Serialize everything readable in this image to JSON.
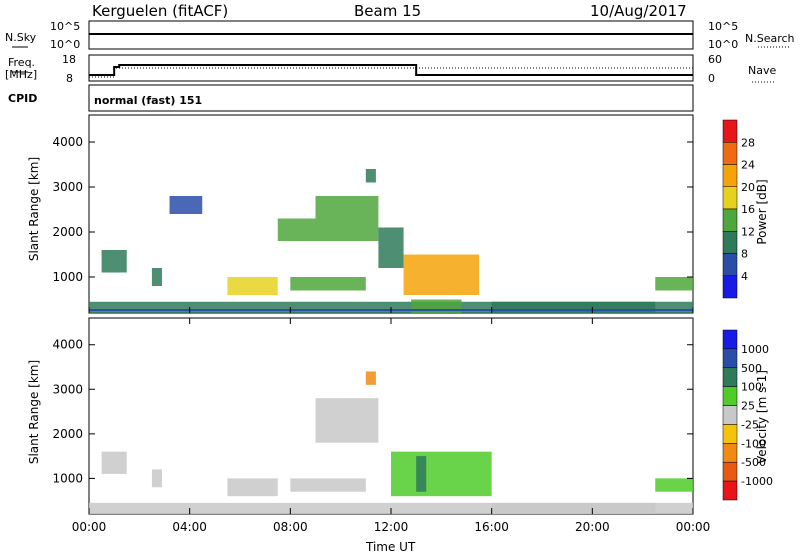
{
  "header": {
    "title": "Kerguelen (fitACF)",
    "beam": "Beam 15",
    "date": "10/Aug/2017"
  },
  "strip_panels": {
    "nsky": {
      "label": "N.Sky",
      "ticks": [
        "10^5",
        "10^0"
      ]
    },
    "nsearch": {
      "label": "N.Search",
      "ticks": [
        "10^5",
        "10^0"
      ]
    },
    "freq": {
      "label": "Freq.",
      "unit": "[MHz]",
      "ticks": [
        "18",
        "8"
      ]
    },
    "nave": {
      "label": "Nave",
      "ticks": [
        "60",
        "0"
      ]
    },
    "cpid": {
      "label": "CPID",
      "value": "normal (fast) 151"
    }
  },
  "chart_data": [
    {
      "type": "heatmap",
      "name": "power-panel",
      "ylabel": "Slant Range [km]",
      "yticks": [
        1000,
        2000,
        3000,
        4000
      ],
      "ylim": [
        200,
        4600
      ],
      "xlim": [
        0,
        24
      ],
      "colorbar": {
        "label": "Power [dB]",
        "ticks": [
          "28",
          "24",
          "20",
          "16",
          "12",
          "8",
          "4"
        ],
        "colors": [
          "#e8141a",
          "#f06a14",
          "#f5a30a",
          "#e6d21e",
          "#4fa63c",
          "#2f7a5a",
          "#2a4ea8",
          "#1a1ae6"
        ]
      },
      "echo_regions": [
        {
          "t0": 0.0,
          "t1": 24.0,
          "r0": 200,
          "r1": 450,
          "level": 8
        },
        {
          "t0": 0.5,
          "t1": 1.5,
          "r0": 1100,
          "r1": 1600,
          "level": 10
        },
        {
          "t0": 2.5,
          "t1": 2.9,
          "r0": 800,
          "r1": 1200,
          "level": 8
        },
        {
          "t0": 3.2,
          "t1": 4.5,
          "r0": 2400,
          "r1": 2800,
          "level": 6
        },
        {
          "t0": 5.5,
          "t1": 7.5,
          "r0": 600,
          "r1": 1000,
          "level": 18
        },
        {
          "t0": 7.5,
          "t1": 9.0,
          "r0": 1800,
          "r1": 2300,
          "level": 12
        },
        {
          "t0": 8.0,
          "t1": 11.0,
          "r0": 700,
          "r1": 1000,
          "level": 14
        },
        {
          "t0": 9.0,
          "t1": 11.5,
          "r0": 1800,
          "r1": 2800,
          "level": 14
        },
        {
          "t0": 11.5,
          "t1": 12.5,
          "r0": 1200,
          "r1": 2100,
          "level": 10
        },
        {
          "t0": 12.5,
          "t1": 15.5,
          "r0": 600,
          "r1": 1500,
          "level": 20
        },
        {
          "t0": 12.8,
          "t1": 14.8,
          "r0": 200,
          "r1": 500,
          "level": 12
        },
        {
          "t0": 16.0,
          "t1": 22.5,
          "r0": 200,
          "r1": 450,
          "level": 8
        },
        {
          "t0": 22.5,
          "t1": 24.0,
          "r0": 700,
          "r1": 1000,
          "level": 12
        },
        {
          "t0": 11.0,
          "t1": 11.4,
          "r0": 3100,
          "r1": 3400,
          "level": 10
        }
      ]
    },
    {
      "type": "heatmap",
      "name": "velocity-panel",
      "ylabel": "Slant Range [km]",
      "yticks": [
        1000,
        2000,
        3000,
        4000
      ],
      "ylim": [
        200,
        4600
      ],
      "xlim": [
        0,
        24
      ],
      "xticks": [
        "00:00",
        "04:00",
        "08:00",
        "12:00",
        "16:00",
        "20:00",
        "00:00"
      ],
      "xlabel": "Time UT",
      "colorbar": {
        "label": "Velocity [m s-1]",
        "ticks": [
          "1000",
          "500",
          "100",
          "25",
          "-25",
          "-100",
          "-500",
          "-1000"
        ],
        "colors": [
          "#1a1ae6",
          "#2a4ea8",
          "#2f7a5a",
          "#4fcc2a",
          "#c8c8c8",
          "#f5c30a",
          "#f08a14",
          "#e85a14",
          "#e8141a"
        ]
      },
      "echo_regions": [
        {
          "t0": 0.0,
          "t1": 24.0,
          "r0": 200,
          "r1": 450,
          "level": 0
        },
        {
          "t0": 0.5,
          "t1": 1.5,
          "r0": 1100,
          "r1": 1600,
          "level": 0
        },
        {
          "t0": 2.5,
          "t1": 2.9,
          "r0": 800,
          "r1": 1200,
          "level": 0
        },
        {
          "t0": 5.5,
          "t1": 7.5,
          "r0": 600,
          "r1": 1000,
          "level": 0
        },
        {
          "t0": 8.0,
          "t1": 11.0,
          "r0": 700,
          "r1": 1000,
          "level": 0
        },
        {
          "t0": 9.0,
          "t1": 11.5,
          "r0": 1800,
          "r1": 2800,
          "level": 0
        },
        {
          "t0": 11.0,
          "t1": 11.4,
          "r0": 3100,
          "r1": 3400,
          "level": -200
        },
        {
          "t0": 12.0,
          "t1": 16.0,
          "r0": 600,
          "r1": 1600,
          "level": 60
        },
        {
          "t0": 13.0,
          "t1": 13.4,
          "r0": 700,
          "r1": 1500,
          "level": 200
        },
        {
          "t0": 16.0,
          "t1": 22.5,
          "r0": 200,
          "r1": 450,
          "level": 0
        },
        {
          "t0": 22.5,
          "t1": 24.0,
          "r0": 700,
          "r1": 1000,
          "level": 40
        }
      ]
    }
  ]
}
